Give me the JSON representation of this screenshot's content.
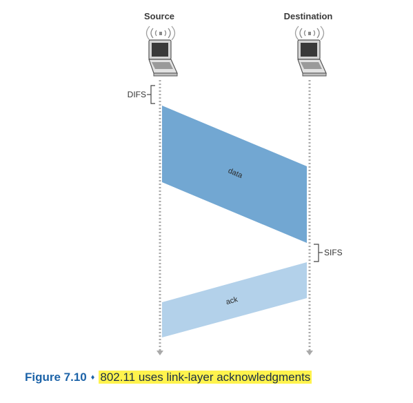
{
  "diagram": {
    "nodes": {
      "source": "Source",
      "destination": "Destination"
    },
    "intervals": {
      "difs": "DIFS",
      "sifs": "SIFS"
    },
    "frames": {
      "data": "data",
      "ack": "ack"
    },
    "colors": {
      "data_frame": "#72a7d2",
      "ack_frame": "#b3d1ea",
      "timeline": "#a9a9a9",
      "caption_accent": "#1c63a8",
      "caption_highlight": "#fff34d"
    }
  },
  "caption": {
    "number": "Figure 7.10",
    "separator": "♦",
    "text": "802.11 uses link-layer acknowledgments"
  }
}
